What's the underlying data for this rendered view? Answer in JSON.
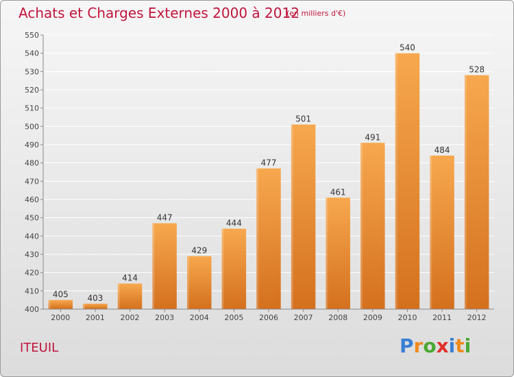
{
  "header": {
    "title": "Achats et Charges Externes 2000 à 2012",
    "subtitle": "(en milliers d'€)"
  },
  "location": "ITEUIL",
  "logo": {
    "text": "Proxiti",
    "letter_colors": [
      "#3a7fd5",
      "#f08a1c",
      "#4aa832",
      "#e0302a",
      "#3a7fd5",
      "#f08a1c",
      "#4aa832"
    ]
  },
  "colors": {
    "bar_top": "#f7a84e",
    "bar_bottom": "#d4701e",
    "title": "#c0143c",
    "grid": "#ffffff"
  },
  "chart_data": {
    "type": "bar",
    "categories": [
      "2000",
      "2001",
      "2002",
      "2003",
      "2004",
      "2005",
      "2006",
      "2007",
      "2008",
      "2009",
      "2010",
      "2011",
      "2012"
    ],
    "values": [
      405,
      403,
      414,
      447,
      429,
      444,
      477,
      501,
      461,
      491,
      540,
      484,
      528
    ],
    "data_labels": [
      "405",
      "403",
      "414",
      "447",
      "429",
      "444",
      "477",
      "501",
      "461",
      "491",
      "540",
      "484",
      "528"
    ],
    "title": "Achats et Charges Externes 2000 à 2012",
    "xlabel": "",
    "ylabel": "",
    "ylim": [
      400,
      550
    ],
    "yticks": [
      400,
      410,
      420,
      430,
      440,
      450,
      460,
      470,
      480,
      490,
      500,
      510,
      520,
      530,
      540,
      550
    ],
    "grid": true,
    "legend": "none"
  }
}
